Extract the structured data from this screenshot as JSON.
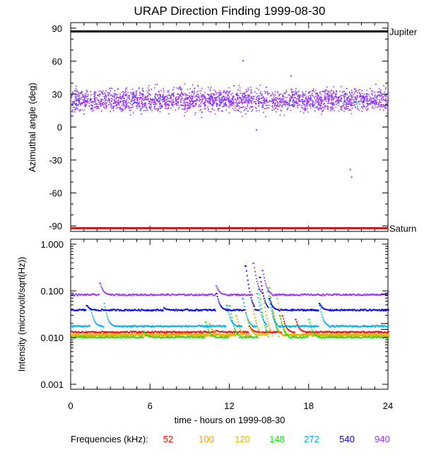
{
  "chart_data": [
    {
      "type": "scatter",
      "title": "URAP Direction Finding  1999-08-30",
      "ylabel": "Azimuthal angle (deg)",
      "ylim": [
        -95,
        95
      ],
      "xlim": [
        0,
        24
      ],
      "y_ticks": [
        "90",
        "60",
        "30",
        "0",
        "-30",
        "-60",
        "-90"
      ],
      "reference_lines": [
        {
          "label": "Jupiter",
          "y": 87,
          "color": "#000000"
        },
        {
          "label": "Saturn",
          "y": -92,
          "color": "#ff0000"
        }
      ],
      "series": [
        {
          "values": {
            "typical_range": [
              15,
              35
            ],
            "outliers": [
              [
                13.0,
                61
              ],
              [
                16.6,
                47
              ],
              [
                14.0,
                -2
              ],
              [
                21.1,
                -38
              ],
              [
                21.2,
                -45
              ]
            ]
          },
          "color": "#9933ff"
        }
      ],
      "grid": false
    },
    {
      "type": "scatter",
      "ylabel": "Intensity (microvolt/sqrt(Hz))",
      "ylim": [
        0.001,
        1.0
      ],
      "yscale": "log",
      "xlim": [
        0,
        24
      ],
      "y_ticks": [
        "1.000",
        "0.100",
        "0.010",
        "0.001"
      ],
      "reference_levels": [
        0.085,
        0.04,
        0.02,
        0.015
      ],
      "x_ticks": [
        "0",
        "6",
        "12",
        "18",
        "24"
      ],
      "xlabel": "time - hours on 1999-08-30",
      "legend_title": "Frequencies (kHz):",
      "series": [
        {
          "name": "52",
          "color": "#ff0000",
          "baseline": 0.0135,
          "bumps": [
            [
              11.0,
              0.0145
            ],
            [
              13.5,
              0.018
            ],
            [
              16.0,
              0.03
            ],
            [
              17.0,
              0.025
            ]
          ]
        },
        {
          "name": "100",
          "color": "#ff9900",
          "baseline": 0.0115,
          "bumps": [
            [
              8.5,
              0.013
            ],
            [
              12.5,
              0.03
            ],
            [
              13.7,
              0.06
            ],
            [
              14.5,
              0.09
            ],
            [
              15.3,
              0.035
            ]
          ]
        },
        {
          "name": "120",
          "color": "#ddbb00",
          "baseline": 0.012,
          "bumps": [
            [
              10.5,
              0.02
            ],
            [
              13.2,
              0.04
            ],
            [
              15.0,
              0.1
            ],
            [
              15.6,
              0.07
            ]
          ]
        },
        {
          "name": "148",
          "color": "#00ee00",
          "baseline": 0.0105,
          "bumps": [
            [
              5.5,
              0.014
            ],
            [
              10.2,
              0.022
            ],
            [
              12.0,
              0.05
            ],
            [
              14.2,
              0.11
            ],
            [
              15.0,
              0.12
            ],
            [
              15.8,
              0.03
            ],
            [
              18.0,
              0.025
            ]
          ]
        },
        {
          "name": "272",
          "color": "#00aaff",
          "baseline": 0.018,
          "bumps": [
            [
              1.5,
              0.04
            ],
            [
              2.5,
              0.055
            ],
            [
              11.8,
              0.05
            ],
            [
              13.0,
              0.07
            ],
            [
              14.1,
              0.09
            ],
            [
              14.9,
              0.1
            ],
            [
              18.8,
              0.05
            ]
          ]
        },
        {
          "name": "540",
          "color": "#0000ee",
          "baseline": 0.04,
          "bumps": [
            [
              1.2,
              0.05
            ],
            [
              7.0,
              0.045
            ],
            [
              11.0,
              0.09
            ],
            [
              13.2,
              0.35
            ],
            [
              14.3,
              0.2
            ],
            [
              15.0,
              0.07
            ],
            [
              18.8,
              0.055
            ]
          ]
        },
        {
          "name": "940",
          "color": "#9933ff",
          "baseline": 0.085,
          "bumps": [
            [
              2.2,
              0.15
            ],
            [
              11.0,
              0.13
            ],
            [
              13.8,
              0.4
            ],
            [
              14.5,
              0.28
            ],
            [
              24.0,
              0.1
            ]
          ]
        }
      ],
      "grid": false
    }
  ]
}
